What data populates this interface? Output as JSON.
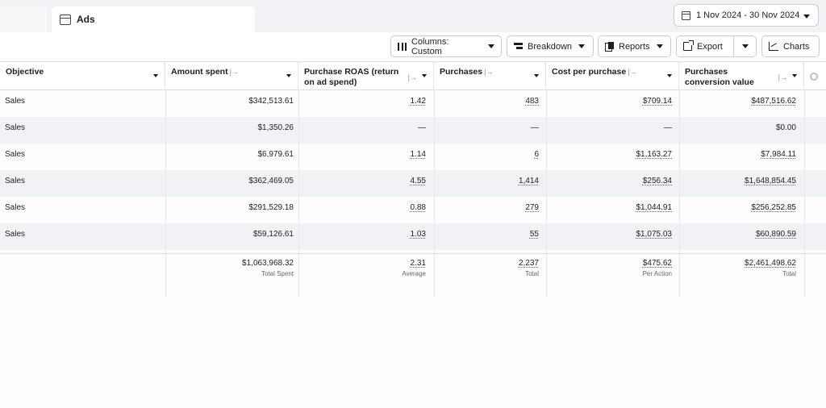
{
  "tabs": {
    "active_label": "Ads"
  },
  "date_range": {
    "label": "1 Nov 2024 - 30 Nov 2024"
  },
  "toolbar": {
    "columns_label": "Columns: Custom",
    "breakdown_label": "Breakdown",
    "reports_label": "Reports",
    "export_label": "Export",
    "charts_label": "Charts"
  },
  "table": {
    "columns": [
      {
        "label": "Objective"
      },
      {
        "label": "Amount spent"
      },
      {
        "label": "Purchase ROAS (return on ad spend)"
      },
      {
        "label": "Purchases"
      },
      {
        "label": "Cost per purchase"
      },
      {
        "label": "Purchases conversion value"
      }
    ],
    "rows": [
      [
        "Sales",
        "$342,513.61",
        "1.42",
        "483",
        "$709.14",
        "$487,516.62"
      ],
      [
        "Sales",
        "$1,350.26",
        "—",
        "—",
        "—",
        "$0.00"
      ],
      [
        "Sales",
        "$6,979.61",
        "1.14",
        "6",
        "$1,163.27",
        "$7,984.11"
      ],
      [
        "Sales",
        "$362,469.05",
        "4.55",
        "1,414",
        "$256.34",
        "$1,648,854.45"
      ],
      [
        "Sales",
        "$291,529.18",
        "0.88",
        "279",
        "$1,044.91",
        "$256,252.85"
      ],
      [
        "Sales",
        "$59,126.61",
        "1.03",
        "55",
        "$1,075.03",
        "$60,890.59"
      ]
    ],
    "totals": [
      {
        "value": "$1,063,968.32",
        "sub": "Total Spent"
      },
      {
        "value": "2.31",
        "sub": "Average"
      },
      {
        "value": "2,237",
        "sub": "Total"
      },
      {
        "value": "$475.62",
        "sub": "Per Action"
      },
      {
        "value": "$2,461,498.62",
        "sub": "Total"
      }
    ]
  }
}
